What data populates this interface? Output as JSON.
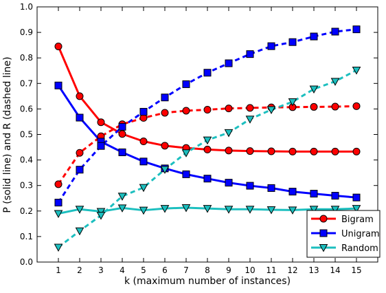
{
  "chart_data": {
    "type": "line",
    "title": "",
    "xlabel": "k (maximum number of instances)",
    "ylabel": "P (solid line) and R (dashed line)",
    "x": [
      1,
      2,
      3,
      4,
      5,
      6,
      7,
      8,
      9,
      10,
      11,
      12,
      13,
      14,
      15
    ],
    "xlim": [
      0,
      16
    ],
    "ylim": [
      0.0,
      1.0
    ],
    "yticks": [
      "0.0",
      "0.1",
      "0.2",
      "0.3",
      "0.4",
      "0.5",
      "0.6",
      "0.7",
      "0.8",
      "0.9",
      "1.0"
    ],
    "xticks": [
      "1",
      "2",
      "3",
      "4",
      "5",
      "6",
      "7",
      "8",
      "9",
      "10",
      "11",
      "12",
      "13",
      "14",
      "15"
    ],
    "grid": false,
    "legend_position": "bottom-right",
    "series": [
      {
        "name": "Bigram",
        "color": "#ff0000",
        "marker": "circle",
        "precision": [
          0.845,
          0.65,
          0.548,
          0.502,
          0.473,
          0.456,
          0.447,
          0.441,
          0.437,
          0.435,
          0.434,
          0.433,
          0.433,
          0.433,
          0.433
        ],
        "recall": [
          0.305,
          0.428,
          0.493,
          0.54,
          0.565,
          0.585,
          0.593,
          0.597,
          0.602,
          0.604,
          0.606,
          0.607,
          0.608,
          0.609,
          0.611
        ]
      },
      {
        "name": "Unigram",
        "color": "#0000ff",
        "marker": "square",
        "precision": [
          0.692,
          0.566,
          0.472,
          0.43,
          0.394,
          0.367,
          0.344,
          0.327,
          0.311,
          0.299,
          0.29,
          0.276,
          0.268,
          0.26,
          0.253
        ],
        "recall": [
          0.233,
          0.362,
          0.455,
          0.53,
          0.589,
          0.645,
          0.697,
          0.742,
          0.779,
          0.815,
          0.846,
          0.862,
          0.884,
          0.903,
          0.912
        ]
      },
      {
        "name": "Random",
        "color": "#1cbfbf",
        "marker": "triangle-down",
        "precision": [
          0.19,
          0.207,
          0.198,
          0.212,
          0.203,
          0.21,
          0.213,
          0.21,
          0.207,
          0.207,
          0.205,
          0.204,
          0.207,
          0.207,
          0.21
        ],
        "recall": [
          0.058,
          0.122,
          0.183,
          0.258,
          0.292,
          0.363,
          0.428,
          0.478,
          0.507,
          0.56,
          0.597,
          0.628,
          0.678,
          0.708,
          0.752
        ]
      }
    ]
  }
}
